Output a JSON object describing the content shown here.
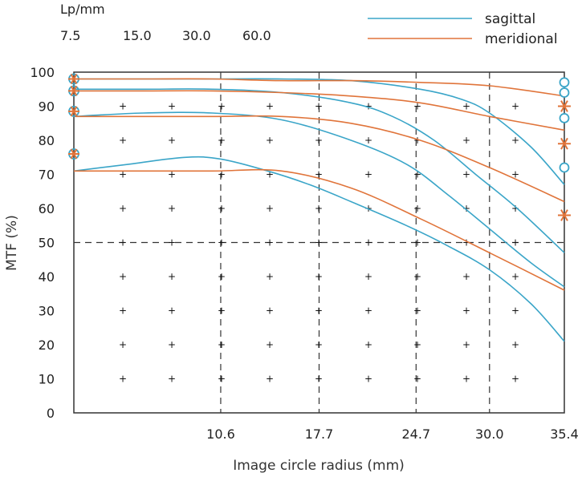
{
  "chart_data": {
    "type": "line",
    "title": "",
    "xlabel": "Image circle radius (mm)",
    "ylabel": "MTF (%)",
    "xlim": [
      0,
      35.4
    ],
    "ylim": [
      0,
      100
    ],
    "grid": true,
    "x_ticks": [
      10.6,
      17.7,
      24.7,
      30.0,
      35.4
    ],
    "x_tick_labels": [
      "10.6",
      "17.7",
      "24.7",
      "30.0",
      "35.4"
    ],
    "y_ticks": [
      0,
      10,
      20,
      30,
      40,
      50,
      60,
      70,
      80,
      90,
      100
    ],
    "y_tick_labels": [
      "0",
      "10",
      "20",
      "30",
      "40",
      "50",
      "60",
      "70",
      "80",
      "90",
      "100"
    ],
    "frequency_label": "Lp/mm",
    "frequencies": [
      "7.5",
      "15.0",
      "30.0",
      "60.0"
    ],
    "legend": [
      {
        "name": "sagittal",
        "color": "#3aa5c8"
      },
      {
        "name": "meridional",
        "color": "#e0743a"
      }
    ],
    "series": [
      {
        "name": "sagittal 7.5",
        "kind": "sagittal",
        "x": [
          0,
          5,
          10,
          15,
          20,
          25,
          28,
          30,
          33,
          35.4
        ],
        "y": [
          98,
          98,
          98,
          98,
          97.5,
          95,
          92,
          88,
          78,
          67
        ]
      },
      {
        "name": "sagittal 15.0",
        "kind": "sagittal",
        "x": [
          0,
          5,
          10,
          15,
          20,
          23,
          26,
          29,
          32,
          35.4
        ],
        "y": [
          95,
          95,
          95,
          94,
          91,
          87,
          80,
          70,
          60,
          47
        ]
      },
      {
        "name": "sagittal 30.0",
        "kind": "sagittal",
        "x": [
          0,
          5,
          10,
          15,
          20,
          24,
          27,
          30,
          33,
          35.4
        ],
        "y": [
          87,
          88,
          88,
          86,
          80,
          73,
          64,
          54,
          44,
          37
        ]
      },
      {
        "name": "sagittal 60.0",
        "kind": "sagittal",
        "x": [
          0,
          4,
          8,
          10.6,
          14,
          17,
          20,
          24,
          27,
          30,
          33,
          35.4
        ],
        "y": [
          71,
          73,
          75,
          74.5,
          71,
          67,
          62,
          55,
          49,
          42,
          32,
          21
        ]
      },
      {
        "name": "meridional 7.5",
        "kind": "meridional",
        "x": [
          0,
          5,
          10,
          15,
          20,
          25,
          30,
          35.4
        ],
        "y": [
          98,
          98,
          98,
          97.5,
          97.5,
          97,
          96,
          93
        ]
      },
      {
        "name": "meridional 15.0",
        "kind": "meridional",
        "x": [
          0,
          5,
          10,
          15,
          20,
          25,
          30,
          35.4
        ],
        "y": [
          94.5,
          94.5,
          94.5,
          94,
          93,
          91,
          87,
          83
        ]
      },
      {
        "name": "meridional 30.0",
        "kind": "meridional",
        "x": [
          0,
          5,
          10,
          15,
          20,
          25,
          30,
          35.4
        ],
        "y": [
          87,
          87,
          87,
          87,
          85,
          80,
          72,
          62
        ]
      },
      {
        "name": "meridional 60.0",
        "kind": "meridional",
        "x": [
          0,
          5,
          10,
          15,
          20,
          25,
          30,
          35.4
        ],
        "y": [
          71,
          71,
          71,
          71,
          66,
          57,
          47,
          36
        ]
      }
    ],
    "start_markers": [
      {
        "label": "7.5",
        "y": 98
      },
      {
        "label": "15.0",
        "y": 94.5
      },
      {
        "label": "30.0",
        "y": 88.5
      },
      {
        "label": "60.0",
        "y": 76
      }
    ],
    "end_sagittal_markers": [
      97,
      94,
      86.5,
      72
    ],
    "end_meridional_markers": [
      90,
      79,
      58
    ]
  }
}
